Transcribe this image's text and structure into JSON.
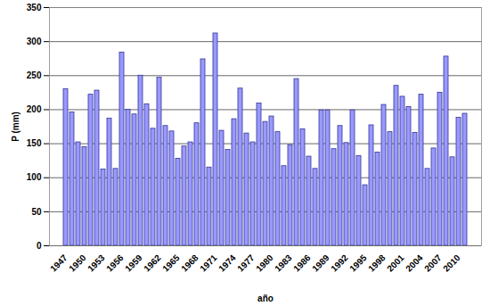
{
  "chart_data": {
    "type": "bar",
    "x_label": "año",
    "y_label": "P (mm)",
    "categories": [
      "1947",
      null,
      null,
      "1950",
      null,
      null,
      "1953",
      null,
      null,
      "1956",
      null,
      null,
      "1959",
      null,
      null,
      "1962",
      null,
      null,
      "1965",
      null,
      null,
      "1968",
      null,
      null,
      "1971",
      null,
      null,
      "1974",
      null,
      null,
      "1977",
      null,
      null,
      "1980",
      null,
      null,
      "1983",
      null,
      null,
      "1986",
      null,
      null,
      "1989",
      null,
      null,
      "1992",
      null,
      null,
      "1995",
      null,
      null,
      "1998",
      null,
      null,
      "2001",
      null,
      null,
      "2004",
      null,
      null,
      "2007",
      null,
      null,
      "2010",
      null
    ],
    "values": [
      230,
      196,
      152,
      145,
      222,
      228,
      112,
      187,
      113,
      284,
      200,
      193,
      250,
      208,
      172,
      247,
      176,
      168,
      128,
      146,
      152,
      180,
      274,
      115,
      312,
      169,
      141,
      186,
      231,
      165,
      152,
      209,
      182,
      190,
      167,
      117,
      148,
      245,
      171,
      131,
      113,
      199,
      199,
      142,
      176,
      151,
      199,
      132,
      89,
      177,
      137,
      207,
      167,
      235,
      219,
      204,
      166,
      222,
      113,
      143,
      225,
      278,
      130,
      188,
      194
    ],
    "color": "#9999ff",
    "ylim": [
      0,
      350
    ],
    "yticks": [
      0,
      50,
      100,
      150,
      200,
      250,
      300,
      350
    ],
    "grid": true
  }
}
